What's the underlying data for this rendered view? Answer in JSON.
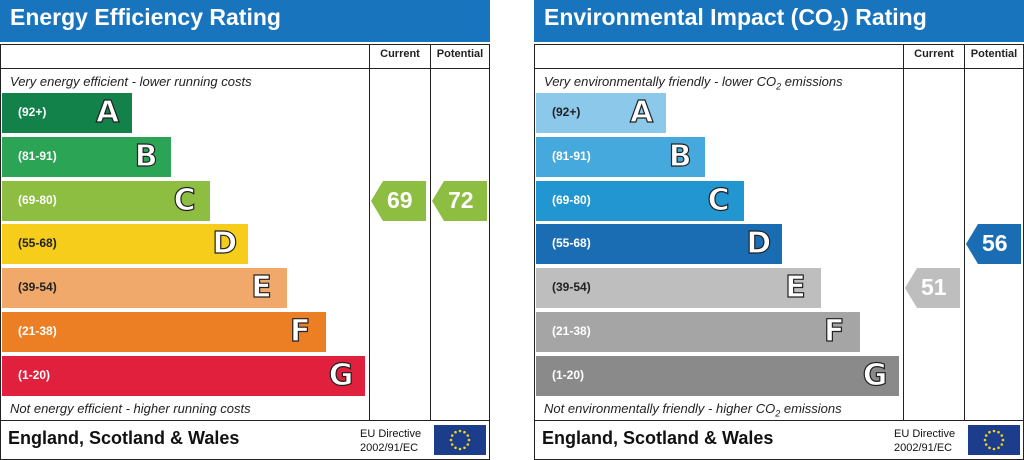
{
  "energy": {
    "title": "Energy Efficiency Rating",
    "current_header": "Current",
    "potential_header": "Potential",
    "top_note": "Very energy efficient - lower running costs",
    "bottom_note": "Not energy efficient - higher running costs",
    "bands": [
      {
        "range": "(92+)",
        "letter": "A",
        "color": "#12824a"
      },
      {
        "range": "(81-91)",
        "letter": "B",
        "color": "#2ba456"
      },
      {
        "range": "(69-80)",
        "letter": "C",
        "color": "#8dbd41"
      },
      {
        "range": "(55-68)",
        "letter": "D",
        "color": "#f5cd1a"
      },
      {
        "range": "(39-54)",
        "letter": "E",
        "color": "#f1a96b"
      },
      {
        "range": "(21-38)",
        "letter": "F",
        "color": "#ec7f24"
      },
      {
        "range": "(1-20)",
        "letter": "G",
        "color": "#e0203c"
      }
    ],
    "current": {
      "value": "69",
      "band": "C",
      "color": "#8dbd41"
    },
    "potential": {
      "value": "72",
      "band": "C",
      "color": "#8dbd41"
    },
    "footer": "England, Scotland & Wales",
    "eu_line1": "EU Directive",
    "eu_line2": "2002/91/EC"
  },
  "environmental": {
    "title_main": "Environmental Impact (CO",
    "title_sub": "2",
    "title_end": ") Rating",
    "current_header": "Current",
    "potential_header": "Potential",
    "top_note_main": "Very environmentally friendly - lower CO",
    "top_note_sub": "2",
    "top_note_end": " emissions",
    "bottom_note_main": "Not environmentally friendly - higher CO",
    "bottom_note_sub": "2",
    "bottom_note_end": " emissions",
    "bands": [
      {
        "range": "(92+)",
        "letter": "A",
        "color": "#8bc8ea"
      },
      {
        "range": "(81-91)",
        "letter": "B",
        "color": "#45a9dd"
      },
      {
        "range": "(69-80)",
        "letter": "C",
        "color": "#2196d0"
      },
      {
        "range": "(55-68)",
        "letter": "D",
        "color": "#1b6db3"
      },
      {
        "range": "(39-54)",
        "letter": "E",
        "color": "#bebebe"
      },
      {
        "range": "(21-38)",
        "letter": "F",
        "color": "#a5a5a5"
      },
      {
        "range": "(1-20)",
        "letter": "G",
        "color": "#8a8a8a"
      }
    ],
    "current": {
      "value": "51",
      "band": "E",
      "color": "#bebebe"
    },
    "potential": {
      "value": "56",
      "band": "D",
      "color": "#1b6db3"
    },
    "footer": "England, Scotland & Wales",
    "eu_line1": "EU Directive",
    "eu_line2": "2002/91/EC"
  },
  "icons": {
    "eu_flag": "eu-flag-icon"
  }
}
